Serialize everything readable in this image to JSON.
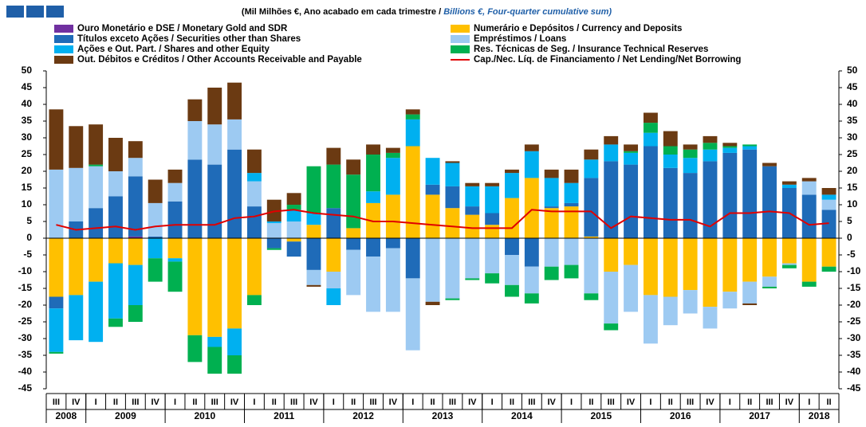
{
  "chart_data": {
    "type": "bar",
    "subtitle": "(Mil Milhões €, Ano acabado em cada trimestre  / ",
    "subtitle_en": "Billions €, Four-quarter cumulative sum)",
    "categories": [
      "III",
      "IV",
      "I",
      "II",
      "III",
      "IV",
      "I",
      "II",
      "III",
      "IV",
      "I",
      "II",
      "III",
      "IV",
      "I",
      "II",
      "III",
      "IV",
      "I",
      "II",
      "III",
      "IV",
      "I",
      "II",
      "III",
      "IV",
      "I",
      "II",
      "III",
      "IV",
      "I",
      "II",
      "III",
      "IV",
      "I",
      "II",
      "III",
      "IV",
      "I",
      "II"
    ],
    "x_groups": [
      {
        "label": "2008",
        "count": 2
      },
      {
        "label": "2009",
        "count": 4
      },
      {
        "label": "2010",
        "count": 4
      },
      {
        "label": "2011",
        "count": 4
      },
      {
        "label": "2012",
        "count": 4
      },
      {
        "label": "2013",
        "count": 4
      },
      {
        "label": "2014",
        "count": 4
      },
      {
        "label": "2015",
        "count": 4
      },
      {
        "label": "2016",
        "count": 4
      },
      {
        "label": "2017",
        "count": 4
      },
      {
        "label": "2018",
        "count": 2
      }
    ],
    "series": [
      {
        "name": "Ouro Monetário e DSE / Monetary Gold and SDR",
        "color": "#7030a0",
        "values": [
          0,
          0,
          0,
          0,
          0.5,
          0,
          0,
          0,
          0,
          0,
          0,
          0,
          0,
          0,
          0,
          0,
          0,
          0,
          0,
          0,
          0,
          0,
          0,
          0,
          0,
          0,
          0,
          0,
          0,
          0,
          0,
          0,
          0,
          0,
          0,
          0,
          0,
          0,
          0,
          0
        ]
      },
      {
        "name": "Numerário e Depósitos / Currency and Deposits",
        "color": "#ffc000",
        "values": [
          -17.5,
          -17,
          -13,
          -7.5,
          -8,
          0,
          -6,
          -29,
          -29.5,
          -27,
          -17,
          0,
          -1,
          4,
          -10,
          3,
          10.5,
          13,
          27.5,
          13,
          9,
          7,
          4,
          12,
          18,
          9,
          9.5,
          0.5,
          -10,
          -8,
          -17,
          -17.5,
          -15.5,
          -20.5,
          -16,
          -13,
          -11.5,
          -7.5,
          -13,
          -8.5
        ]
      },
      {
        "name": "Títulos exceto Ações / Securities other than Shares",
        "color": "#1f6bb8",
        "values": [
          -3.5,
          5,
          9,
          12.5,
          18,
          0.5,
          11,
          23.5,
          22,
          26.5,
          9.5,
          -3,
          -4.5,
          -9.5,
          9,
          -3.5,
          -5.5,
          -3,
          -12,
          3,
          6.5,
          2.5,
          3.5,
          -5,
          -8.5,
          0.5,
          1,
          17.5,
          23,
          22,
          27.5,
          21,
          19.5,
          23,
          25.5,
          26.5,
          21.5,
          15,
          13,
          8.5
        ]
      },
      {
        "name": "Empréstimos / Loans",
        "color": "#9dcaf2",
        "values": [
          20.5,
          16,
          12.5,
          7.5,
          5.5,
          10,
          5.5,
          11.5,
          12,
          9,
          7.5,
          4.5,
          5,
          -4.5,
          -5,
          -13.5,
          -16.5,
          -19,
          -21.5,
          -19,
          -18,
          -12,
          -10.5,
          -9,
          -8,
          -8.5,
          -8,
          -16.5,
          -15.5,
          -14,
          -14.5,
          -8.5,
          -7,
          -6.5,
          -5,
          -6.5,
          -3,
          -0.5,
          4,
          3
        ]
      },
      {
        "name": "Ações e Out. Part. / Shares and other Equity",
        "color": "#00b0f0",
        "values": [
          -13,
          -13.5,
          -18,
          -16.5,
          -12,
          -6,
          -1,
          0,
          -3,
          -8,
          2.5,
          0.5,
          3.5,
          3.5,
          -5,
          0,
          3.5,
          11,
          8,
          8,
          7,
          6,
          8,
          7.5,
          8,
          8.5,
          6,
          5.5,
          5,
          3.5,
          4,
          4,
          4.5,
          3.5,
          1.5,
          1,
          0,
          1,
          0,
          1.5
        ]
      },
      {
        "name": "Res. Técnicas de Seg. / Insurance Technical Reserves",
        "color": "#00b050",
        "values": [
          -0.5,
          0,
          0.5,
          -2.5,
          -5,
          -7,
          -9,
          -8,
          -8,
          -5.5,
          -3,
          -0.5,
          1.5,
          14,
          13,
          16,
          11,
          1.5,
          1.5,
          0,
          -0.5,
          -0.5,
          -3,
          -3.5,
          -3,
          -4,
          -4,
          -2,
          -2,
          0.5,
          3,
          2.5,
          2.5,
          2,
          0.5,
          0.5,
          -0.5,
          -1,
          -1.5,
          -1.5
        ]
      },
      {
        "name": "Out. Débitos e Créditos / Other Accounts Receivable and Payable",
        "color": "#6b3a12",
        "values": [
          18,
          12.5,
          12,
          10,
          5,
          7,
          4,
          6.5,
          11,
          11,
          7,
          6.5,
          3.5,
          -0.5,
          5,
          4.5,
          3,
          1.5,
          1.5,
          -1,
          0.5,
          1,
          1,
          1,
          2,
          2.5,
          4,
          3,
          2.5,
          2,
          3,
          4.5,
          1.5,
          2,
          1,
          -0.5,
          1,
          1,
          1,
          2
        ]
      },
      {
        "name": "Cap./Nec. Líq. de Financiamento / Net Lending/Net Borrowing",
        "color": "#e00000",
        "type": "line",
        "values": [
          4,
          2.5,
          3,
          3.5,
          2.5,
          3.5,
          4,
          4,
          4,
          6,
          6.5,
          8,
          8.5,
          7.5,
          7,
          6.5,
          5,
          5,
          4.5,
          4,
          3.5,
          3,
          3,
          3,
          8.5,
          8,
          8,
          8,
          3,
          6.5,
          6,
          5.5,
          5.5,
          3.5,
          7.5,
          7.5,
          8,
          7.5,
          4,
          4.5
        ]
      }
    ],
    "ylim": [
      -45,
      50
    ],
    "yticks": [
      -45,
      -40,
      -35,
      -30,
      -25,
      -20,
      -15,
      -10,
      -5,
      0,
      5,
      10,
      15,
      20,
      25,
      30,
      35,
      40,
      45,
      50
    ],
    "y2lim": [
      -45,
      50
    ],
    "y2ticks": [
      -45,
      -40,
      -35,
      -30,
      -25,
      -20,
      -15,
      -10,
      -5,
      0,
      5,
      10,
      15,
      20,
      25,
      30,
      35,
      40,
      45,
      50
    ]
  }
}
